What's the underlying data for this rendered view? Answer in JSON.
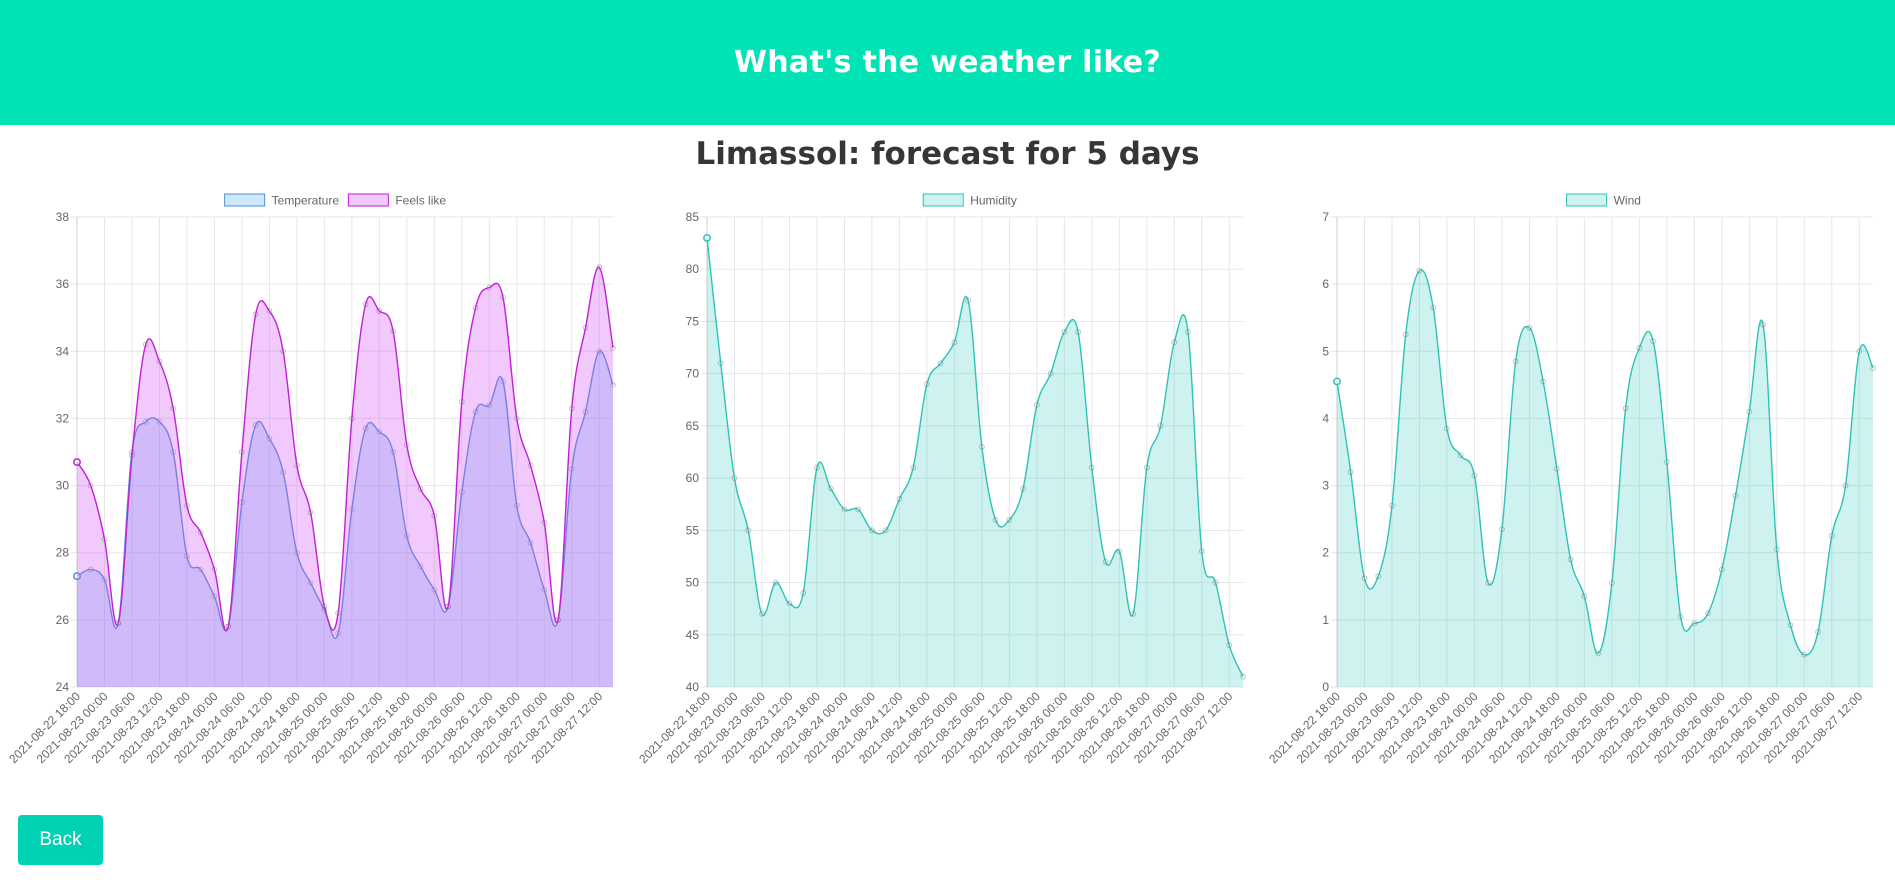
{
  "header": {
    "title": "What's the weather like?"
  },
  "page": {
    "title": "Limassol: forecast for 5 days"
  },
  "back_button": {
    "label": "Back"
  },
  "x_labels": [
    "2021-08-22 18:00",
    "2021-08-23 00:00",
    "2021-08-23 06:00",
    "2021-08-23 12:00",
    "2021-08-23 18:00",
    "2021-08-24 00:00",
    "2021-08-24 06:00",
    "2021-08-24 12:00",
    "2021-08-24 18:00",
    "2021-08-25 00:00",
    "2021-08-25 06:00",
    "2021-08-25 12:00",
    "2021-08-25 18:00",
    "2021-08-26 00:00",
    "2021-08-26 06:00",
    "2021-08-26 12:00",
    "2021-08-26 18:00",
    "2021-08-27 00:00",
    "2021-08-27 06:00",
    "2021-08-27 12:00"
  ],
  "chart_data": [
    {
      "type": "area",
      "x_count": 40,
      "ylim": [
        24,
        38
      ],
      "y_ticks": [
        24,
        26,
        28,
        30,
        32,
        34,
        36,
        38
      ],
      "grid": true,
      "legend_position": "top",
      "series": [
        {
          "name": "Temperature",
          "color": "#4a90d9",
          "fill": "rgba(54,162,235,0.25)",
          "values": [
            27.3,
            27.5,
            27.2,
            25.9,
            31.0,
            31.9,
            31.9,
            31.0,
            27.9,
            27.5,
            26.7,
            25.8,
            29.5,
            31.8,
            31.4,
            30.4,
            28.0,
            27.1,
            26.3,
            25.6,
            29.3,
            31.7,
            31.6,
            31.0,
            28.5,
            27.6,
            26.9,
            26.4,
            29.8,
            32.2,
            32.4,
            33.1,
            29.4,
            28.3,
            26.9,
            26.0,
            30.5,
            32.2,
            34.0,
            33.0
          ]
        },
        {
          "name": "Feels like",
          "color": "#c020d6",
          "fill": "rgba(215,100,245,0.35)",
          "values": [
            30.7,
            30.0,
            28.4,
            25.9,
            30.9,
            34.2,
            33.7,
            32.3,
            29.4,
            28.6,
            27.5,
            25.8,
            31.0,
            35.1,
            35.2,
            34.0,
            30.6,
            29.2,
            26.4,
            26.2,
            32.0,
            35.4,
            35.2,
            34.6,
            31.2,
            29.9,
            29.1,
            26.4,
            32.5,
            35.3,
            35.9,
            35.6,
            32.0,
            30.6,
            28.9,
            26.0,
            32.3,
            34.7,
            36.5,
            34.1
          ]
        }
      ]
    },
    {
      "type": "area",
      "x_count": 40,
      "ylim": [
        40,
        85
      ],
      "y_ticks": [
        40,
        45,
        50,
        55,
        60,
        65,
        70,
        75,
        80,
        85
      ],
      "grid": true,
      "legend_position": "top",
      "series": [
        {
          "name": "Humidity",
          "color": "#2fc2b8",
          "fill": "rgba(75,210,200,0.28)",
          "values": [
            83,
            71,
            60,
            55,
            47,
            50,
            48,
            49,
            61,
            59,
            57,
            57,
            55,
            55,
            58,
            61,
            69,
            71,
            73,
            77,
            63,
            56,
            56,
            59,
            67,
            70,
            74,
            74,
            61,
            52,
            53,
            47,
            61,
            65,
            73,
            74,
            53,
            50,
            44,
            41
          ]
        }
      ]
    },
    {
      "type": "area",
      "x_count": 40,
      "ylim": [
        0,
        7
      ],
      "y_ticks": [
        0,
        1,
        2,
        3,
        4,
        5,
        6,
        7
      ],
      "grid": true,
      "legend_position": "top",
      "series": [
        {
          "name": "Wind",
          "color": "#2fc2b8",
          "fill": "rgba(75,210,200,0.28)",
          "values": [
            4.55,
            3.2,
            1.62,
            1.65,
            2.7,
            5.25,
            6.2,
            5.65,
            3.85,
            3.45,
            3.15,
            1.55,
            2.35,
            4.85,
            5.35,
            4.55,
            3.25,
            1.9,
            1.35,
            0.5,
            1.55,
            4.15,
            5.05,
            5.15,
            3.35,
            1.05,
            0.95,
            1.1,
            1.75,
            2.85,
            4.1,
            5.4,
            2.05,
            0.92,
            0.48,
            0.82,
            2.25,
            3.0,
            5.0,
            4.75
          ]
        }
      ]
    }
  ]
}
